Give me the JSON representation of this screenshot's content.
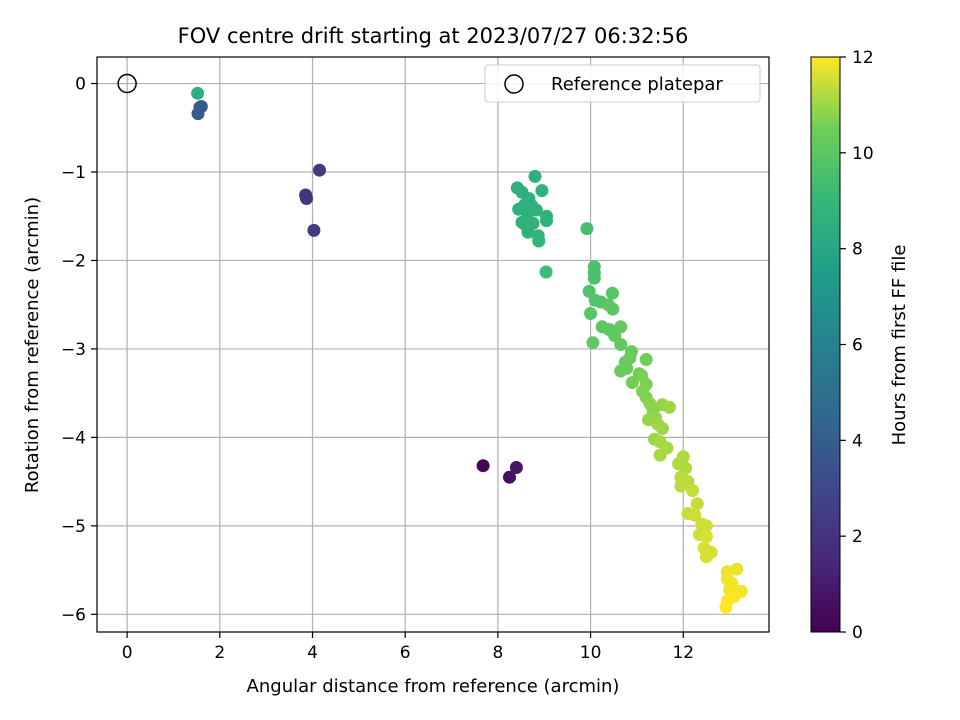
{
  "chart_data": {
    "type": "scatter",
    "title": "FOV centre drift starting at 2023/07/27 06:32:56",
    "xlabel": "Angular distance from reference (arcmin)",
    "ylabel": "Rotation from reference (arcmin)",
    "xlim": [
      -0.65,
      13.85
    ],
    "ylim": [
      -6.2,
      0.3
    ],
    "xticks": [
      0,
      2,
      4,
      6,
      8,
      10,
      12
    ],
    "yticks": [
      0,
      -1,
      -2,
      -3,
      -4,
      -5,
      -6
    ],
    "grid": true,
    "legend": {
      "placement": "top-right",
      "entries": [
        "Reference platepar"
      ]
    },
    "reference_point": {
      "x": 0,
      "y": 0
    },
    "colorbar": {
      "label": "Hours from first FF file",
      "range": [
        0,
        12
      ],
      "ticks": [
        0,
        2,
        4,
        6,
        8,
        10,
        12
      ],
      "colormap": "viridis"
    },
    "points": [
      {
        "x": 7.68,
        "y": -4.32,
        "h": 0.2
      },
      {
        "x": 8.25,
        "y": -4.45,
        "h": 0.5
      },
      {
        "x": 8.4,
        "y": -4.34,
        "h": 0.8
      },
      {
        "x": 3.85,
        "y": -1.26,
        "h": 2.0
      },
      {
        "x": 3.87,
        "y": -1.3,
        "h": 2.1
      },
      {
        "x": 4.15,
        "y": -0.98,
        "h": 2.3
      },
      {
        "x": 4.03,
        "y": -1.66,
        "h": 2.4
      },
      {
        "x": 1.57,
        "y": -0.27,
        "h": 3.7
      },
      {
        "x": 1.6,
        "y": -0.26,
        "h": 3.8
      },
      {
        "x": 1.53,
        "y": -0.34,
        "h": 3.9
      },
      {
        "x": 1.52,
        "y": -0.11,
        "h": 8.5
      },
      {
        "x": 8.42,
        "y": -1.18,
        "h": 8.5
      },
      {
        "x": 8.52,
        "y": -1.23,
        "h": 8.5
      },
      {
        "x": 8.8,
        "y": -1.05,
        "h": 8.5
      },
      {
        "x": 8.67,
        "y": -1.3,
        "h": 8.6
      },
      {
        "x": 8.58,
        "y": -1.37,
        "h": 8.6
      },
      {
        "x": 8.45,
        "y": -1.42,
        "h": 8.6
      },
      {
        "x": 8.73,
        "y": -1.38,
        "h": 8.6
      },
      {
        "x": 8.64,
        "y": -1.47,
        "h": 8.6
      },
      {
        "x": 8.83,
        "y": -1.43,
        "h": 8.6
      },
      {
        "x": 8.95,
        "y": -1.21,
        "h": 8.7
      },
      {
        "x": 9.05,
        "y": -1.5,
        "h": 8.7
      },
      {
        "x": 9.05,
        "y": -1.55,
        "h": 8.7
      },
      {
        "x": 8.52,
        "y": -1.57,
        "h": 8.7
      },
      {
        "x": 8.6,
        "y": -1.6,
        "h": 8.7
      },
      {
        "x": 8.65,
        "y": -1.68,
        "h": 8.7
      },
      {
        "x": 8.76,
        "y": -1.58,
        "h": 8.7
      },
      {
        "x": 8.87,
        "y": -1.72,
        "h": 8.8
      },
      {
        "x": 8.88,
        "y": -1.78,
        "h": 8.8
      },
      {
        "x": 9.04,
        "y": -2.13,
        "h": 9.2
      },
      {
        "x": 9.92,
        "y": -1.64,
        "h": 9.4
      },
      {
        "x": 10.08,
        "y": -2.07,
        "h": 9.6
      },
      {
        "x": 10.08,
        "y": -2.14,
        "h": 9.6
      },
      {
        "x": 10.08,
        "y": -2.2,
        "h": 9.6
      },
      {
        "x": 9.97,
        "y": -2.35,
        "h": 9.7
      },
      {
        "x": 10.1,
        "y": -2.45,
        "h": 9.8
      },
      {
        "x": 10.22,
        "y": -2.47,
        "h": 9.8
      },
      {
        "x": 10.47,
        "y": -2.37,
        "h": 9.9
      },
      {
        "x": 10.0,
        "y": -2.6,
        "h": 9.9
      },
      {
        "x": 10.38,
        "y": -2.5,
        "h": 10.0
      },
      {
        "x": 10.48,
        "y": -2.55,
        "h": 10.0
      },
      {
        "x": 10.25,
        "y": -2.75,
        "h": 10.0
      },
      {
        "x": 10.4,
        "y": -2.78,
        "h": 10.1
      },
      {
        "x": 10.52,
        "y": -2.85,
        "h": 10.1
      },
      {
        "x": 10.05,
        "y": -2.93,
        "h": 10.1
      },
      {
        "x": 10.65,
        "y": -2.75,
        "h": 10.2
      },
      {
        "x": 10.65,
        "y": -2.95,
        "h": 10.2
      },
      {
        "x": 10.88,
        "y": -3.03,
        "h": 10.3
      },
      {
        "x": 10.75,
        "y": -3.15,
        "h": 10.3
      },
      {
        "x": 10.85,
        "y": -3.1,
        "h": 10.4
      },
      {
        "x": 10.65,
        "y": -3.25,
        "h": 10.4
      },
      {
        "x": 10.78,
        "y": -3.22,
        "h": 10.4
      },
      {
        "x": 11.2,
        "y": -3.12,
        "h": 10.5
      },
      {
        "x": 11.05,
        "y": -3.28,
        "h": 10.5
      },
      {
        "x": 10.9,
        "y": -3.38,
        "h": 10.5
      },
      {
        "x": 11.1,
        "y": -3.3,
        "h": 10.6
      },
      {
        "x": 11.2,
        "y": -3.4,
        "h": 10.6
      },
      {
        "x": 11.12,
        "y": -3.48,
        "h": 10.7
      },
      {
        "x": 11.2,
        "y": -3.55,
        "h": 10.7
      },
      {
        "x": 11.28,
        "y": -3.62,
        "h": 10.8
      },
      {
        "x": 11.35,
        "y": -3.7,
        "h": 10.8
      },
      {
        "x": 11.25,
        "y": -3.8,
        "h": 10.9
      },
      {
        "x": 11.4,
        "y": -3.78,
        "h": 10.9
      },
      {
        "x": 11.55,
        "y": -3.63,
        "h": 10.9
      },
      {
        "x": 11.7,
        "y": -3.66,
        "h": 11.0
      },
      {
        "x": 11.45,
        "y": -3.85,
        "h": 11.0
      },
      {
        "x": 11.55,
        "y": -3.9,
        "h": 11.0
      },
      {
        "x": 11.38,
        "y": -4.02,
        "h": 11.0
      },
      {
        "x": 11.5,
        "y": -4.05,
        "h": 11.1
      },
      {
        "x": 11.65,
        "y": -4.12,
        "h": 11.1
      },
      {
        "x": 11.5,
        "y": -4.2,
        "h": 11.1
      },
      {
        "x": 11.9,
        "y": -4.3,
        "h": 11.2
      },
      {
        "x": 12.0,
        "y": -4.22,
        "h": 11.2
      },
      {
        "x": 12.05,
        "y": -4.35,
        "h": 11.2
      },
      {
        "x": 11.95,
        "y": -4.45,
        "h": 11.3
      },
      {
        "x": 12.1,
        "y": -4.5,
        "h": 11.3
      },
      {
        "x": 11.95,
        "y": -4.55,
        "h": 11.3
      },
      {
        "x": 12.2,
        "y": -4.6,
        "h": 11.4
      },
      {
        "x": 12.3,
        "y": -4.75,
        "h": 11.4
      },
      {
        "x": 12.1,
        "y": -4.86,
        "h": 11.4
      },
      {
        "x": 12.25,
        "y": -4.88,
        "h": 11.5
      },
      {
        "x": 12.4,
        "y": -4.98,
        "h": 11.5
      },
      {
        "x": 12.5,
        "y": -5.0,
        "h": 11.5
      },
      {
        "x": 12.35,
        "y": -5.1,
        "h": 11.5
      },
      {
        "x": 12.5,
        "y": -5.12,
        "h": 11.6
      },
      {
        "x": 12.45,
        "y": -5.25,
        "h": 11.6
      },
      {
        "x": 12.6,
        "y": -5.3,
        "h": 11.6
      },
      {
        "x": 12.5,
        "y": -5.35,
        "h": 11.6
      },
      {
        "x": 12.95,
        "y": -5.52,
        "h": 11.8
      },
      {
        "x": 13.15,
        "y": -5.49,
        "h": 11.8
      },
      {
        "x": 12.95,
        "y": -5.6,
        "h": 11.9
      },
      {
        "x": 13.05,
        "y": -5.65,
        "h": 11.9
      },
      {
        "x": 13.0,
        "y": -5.72,
        "h": 11.9
      },
      {
        "x": 13.25,
        "y": -5.74,
        "h": 11.9
      },
      {
        "x": 13.1,
        "y": -5.8,
        "h": 12.0
      },
      {
        "x": 12.95,
        "y": -5.85,
        "h": 12.0
      },
      {
        "x": 12.92,
        "y": -5.92,
        "h": 12.0
      }
    ]
  }
}
